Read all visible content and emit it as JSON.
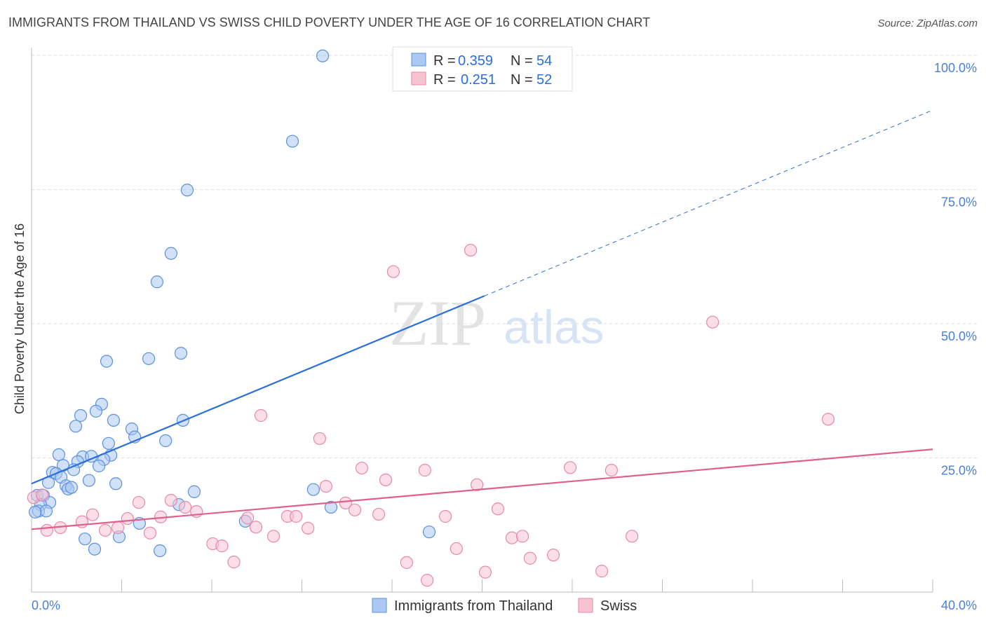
{
  "title": "IMMIGRANTS FROM THAILAND VS SWISS CHILD POVERTY UNDER THE AGE OF 16 CORRELATION CHART",
  "source": "Source: ZipAtlas.com",
  "watermark": "ZIPatlas",
  "chart_data": {
    "type": "scatter",
    "xlabel": "",
    "ylabel": "Child Poverty Under the Age of 16",
    "xlim": [
      0,
      40
    ],
    "ylim": [
      0,
      100
    ],
    "x_tick_labels": [
      "0.0%",
      "40.0%"
    ],
    "y_ticks": [
      25,
      50,
      75,
      100
    ],
    "y_tick_labels": [
      "25.0%",
      "50.0%",
      "75.0%",
      "100.0%"
    ],
    "legend_stats": [
      {
        "r_label": "R = ",
        "r": "0.359",
        "n_label": "N = ",
        "n": "54"
      },
      {
        "r_label": "R = ",
        "r": "0.251",
        "n_label": "N = ",
        "n": "52"
      }
    ],
    "series": [
      {
        "name": "Immigrants from Thailand",
        "color": "#5b8fe0",
        "fill": "#aac8f2",
        "trend": {
          "x0": 0,
          "y0": 20.2,
          "x1": 40,
          "y1": 89.8,
          "solid_until": 20.1,
          "color": "#2a6fdb"
        },
        "points": [
          [
            12.92,
            99.9
          ],
          [
            11.58,
            84.0
          ],
          [
            6.91,
            74.9
          ],
          [
            6.19,
            63.1
          ],
          [
            5.57,
            57.8
          ],
          [
            3.33,
            43.0
          ],
          [
            5.2,
            43.5
          ],
          [
            6.63,
            44.5
          ],
          [
            3.11,
            35.0
          ],
          [
            2.18,
            32.9
          ],
          [
            2.86,
            33.7
          ],
          [
            3.64,
            32.0
          ],
          [
            6.72,
            32.0
          ],
          [
            1.96,
            30.9
          ],
          [
            4.45,
            30.4
          ],
          [
            4.58,
            28.9
          ],
          [
            5.95,
            28.2
          ],
          [
            3.42,
            27.7
          ],
          [
            1.21,
            25.6
          ],
          [
            2.27,
            25.2
          ],
          [
            2.65,
            25.3
          ],
          [
            3.52,
            25.5
          ],
          [
            3.21,
            24.7
          ],
          [
            2.05,
            24.3
          ],
          [
            2.99,
            23.5
          ],
          [
            1.4,
            23.6
          ],
          [
            0.93,
            22.3
          ],
          [
            1.09,
            22.1
          ],
          [
            1.87,
            22.8
          ],
          [
            1.31,
            21.4
          ],
          [
            0.75,
            20.4
          ],
          [
            2.55,
            20.8
          ],
          [
            3.74,
            20.2
          ],
          [
            1.53,
            19.8
          ],
          [
            1.62,
            19.2
          ],
          [
            1.77,
            19.5
          ],
          [
            7.22,
            18.7
          ],
          [
            12.51,
            19.1
          ],
          [
            0.25,
            18.0
          ],
          [
            0.53,
            18.0
          ],
          [
            0.81,
            16.7
          ],
          [
            0.4,
            16.3
          ],
          [
            6.54,
            16.3
          ],
          [
            13.29,
            15.8
          ],
          [
            0.31,
            15.1
          ],
          [
            0.65,
            15.1
          ],
          [
            0.16,
            14.9
          ],
          [
            9.49,
            13.2
          ],
          [
            4.79,
            12.8
          ],
          [
            17.65,
            11.2
          ],
          [
            2.37,
            9.9
          ],
          [
            3.89,
            10.3
          ],
          [
            2.8,
            8.0
          ],
          [
            5.7,
            7.7
          ]
        ]
      },
      {
        "name": "Swiss",
        "color": "#e88aa6",
        "fill": "#f7c3d3",
        "trend": {
          "x0": 0,
          "y0": 11.7,
          "x1": 40,
          "y1": 26.6,
          "solid_until": 40,
          "color": "#e0608a"
        },
        "points": [
          [
            0.09,
            17.6
          ],
          [
            0.47,
            18.1
          ],
          [
            0.68,
            11.5
          ],
          [
            1.28,
            12.0
          ],
          [
            2.24,
            13.1
          ],
          [
            2.71,
            14.4
          ],
          [
            3.27,
            11.5
          ],
          [
            3.83,
            12.0
          ],
          [
            4.26,
            13.7
          ],
          [
            4.76,
            16.7
          ],
          [
            5.26,
            11.0
          ],
          [
            5.73,
            14.0
          ],
          [
            6.19,
            17.1
          ],
          [
            6.82,
            15.8
          ],
          [
            7.32,
            15.0
          ],
          [
            8.04,
            9.0
          ],
          [
            8.45,
            8.6
          ],
          [
            8.98,
            5.6
          ],
          [
            9.59,
            13.8
          ],
          [
            9.96,
            12.1
          ],
          [
            10.18,
            32.9
          ],
          [
            10.74,
            10.4
          ],
          [
            11.36,
            14.1
          ],
          [
            11.74,
            14.1
          ],
          [
            12.27,
            11.9
          ],
          [
            12.79,
            28.6
          ],
          [
            13.07,
            19.7
          ],
          [
            13.94,
            16.6
          ],
          [
            14.35,
            15.3
          ],
          [
            14.66,
            23.1
          ],
          [
            15.41,
            14.5
          ],
          [
            15.72,
            20.9
          ],
          [
            16.06,
            59.7
          ],
          [
            16.65,
            5.5
          ],
          [
            17.46,
            22.7
          ],
          [
            17.56,
            2.2
          ],
          [
            18.37,
            14.1
          ],
          [
            18.86,
            8.1
          ],
          [
            19.49,
            63.7
          ],
          [
            19.77,
            20.0
          ],
          [
            20.14,
            3.7
          ],
          [
            20.7,
            15.5
          ],
          [
            21.32,
            10.1
          ],
          [
            21.79,
            10.4
          ],
          [
            22.13,
            6.3
          ],
          [
            23.16,
            6.9
          ],
          [
            23.91,
            23.2
          ],
          [
            25.31,
            3.9
          ],
          [
            25.74,
            22.7
          ],
          [
            26.65,
            10.4
          ],
          [
            30.23,
            50.3
          ],
          [
            35.36,
            32.2
          ]
        ]
      }
    ]
  }
}
